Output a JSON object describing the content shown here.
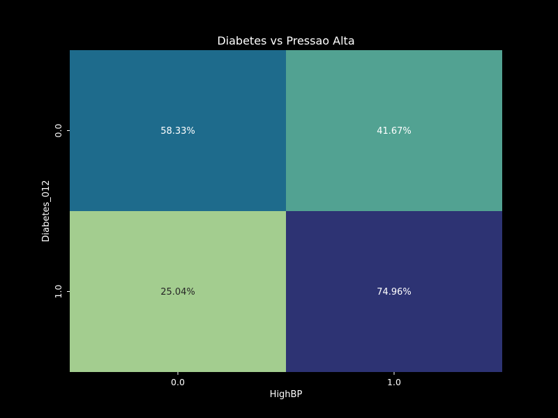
{
  "chart_data": {
    "type": "heatmap",
    "title": "Diabetes vs Pressao Alta",
    "xlabel": "HighBP",
    "ylabel": "Diabetes_012",
    "x_categories": [
      "0.0",
      "1.0"
    ],
    "y_categories": [
      "0.0",
      "1.0"
    ],
    "values": [
      [
        58.33,
        41.67
      ],
      [
        25.04,
        74.96
      ]
    ],
    "cell_labels": [
      [
        "58.33%",
        "41.67%"
      ],
      [
        "25.04%",
        "74.96%"
      ]
    ],
    "cell_colors": [
      [
        "#1e6b8c",
        "#52a292"
      ],
      [
        "#a3cd8f",
        "#2d3373"
      ]
    ],
    "cell_text_colors": [
      [
        "#ffffff",
        "#ffffff"
      ],
      [
        "#262626",
        "#ffffff"
      ]
    ],
    "colorbar": false,
    "background_color": "#000000"
  }
}
